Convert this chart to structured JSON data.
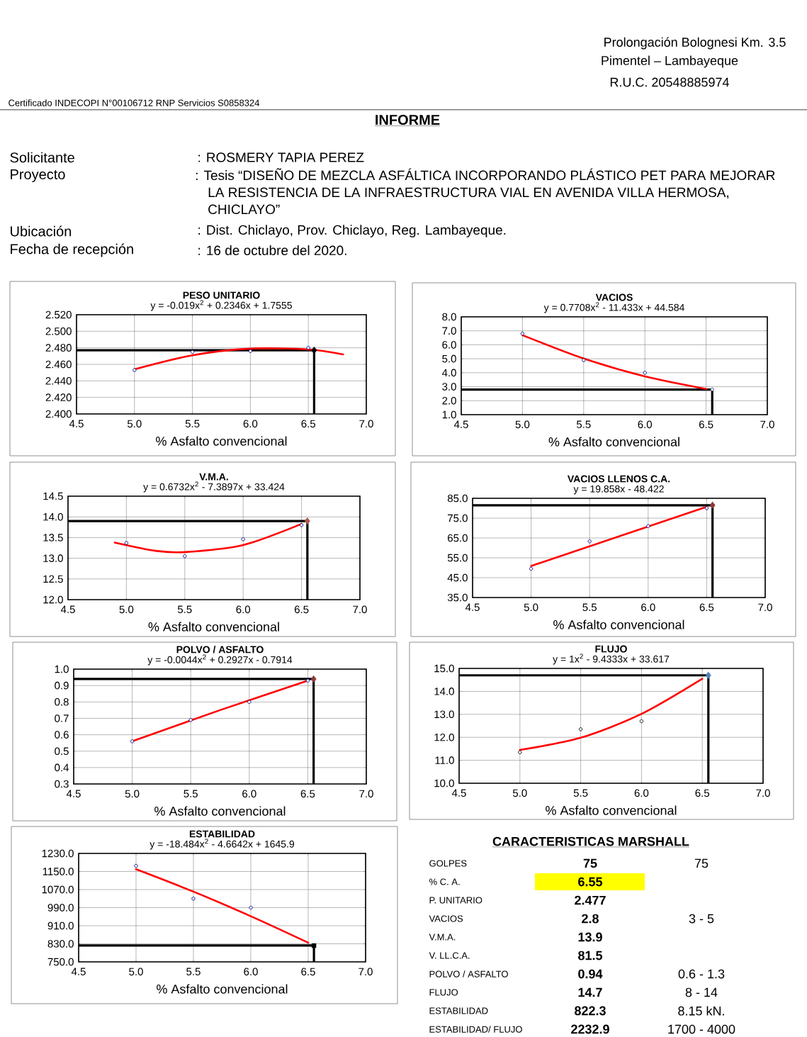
{
  "chart_data": [
    {
      "type": "other",
      "title": "INFORME",
      "annotations": [
        "Prolongación Bolognesi Km. 3.5",
        "Pimentel – Lambayeque",
        "R.U.C. 20548885974",
        "Certificado INDECOPI N°00106712  RNP Servicios S0858324",
        "Solicitante",
        ": ROSMERY TAPIA PEREZ",
        "Proyecto",
        ": Tesis “DISEÑO DE MEZCLA ASFÁLTICA INCORPORANDO PLÁSTICO PET PARA MEJORAR LA RESISTENCIA DE LA INFRAESTRUCTURA VIAL EN AVENIDA VILLA HERMOSA, CHICLAYO”",
        "Ubicación",
        ": Dist. Chiclayo, Prov. Chiclayo, Reg. Lambayeque.",
        "Fecha de recepción",
        ": 16 de octubre del 2020."
      ]
    },
    {
      "type": "scatter",
      "title": "PESO UNITARIO",
      "xlabel": "% Asfalto convencional",
      "annotations": [
        "y = -0.019x$^{2}$ + 0.2346x  + 1.7555"
      ],
      "grid": true,
      "xlim": [
        4.5,
        7.0
      ],
      "xticks": [
        {
          "value": 4.5,
          "label": "4.5"
        },
        {
          "value": 5.0,
          "label": "5.0"
        },
        {
          "value": 5.5,
          "label": "5.5"
        },
        {
          "value": 6.0,
          "label": "6.0"
        },
        {
          "value": 6.5,
          "label": "6.5"
        },
        {
          "value": 7.0,
          "label": "7.0"
        }
      ],
      "ylim": [
        2.4,
        2.52
      ],
      "yticks": [
        {
          "value": 2.4,
          "label": "2.400"
        },
        {
          "value": 2.42,
          "label": "2.420"
        },
        {
          "value": 2.44,
          "label": "2.440"
        },
        {
          "value": 2.46,
          "label": "2.460"
        },
        {
          "value": 2.48,
          "label": "2.480"
        },
        {
          "value": 2.5,
          "label": "2.500"
        },
        {
          "value": 2.52,
          "label": "2.520"
        }
      ],
      "ref_lines": [
        {
          "axis": "x",
          "value": 6.55
        },
        {
          "axis": "y",
          "value": 2.477
        }
      ],
      "series": [
        {
          "type": "scatter",
          "marker": "circle",
          "color": "#000080",
          "x": [
            5.0,
            5.5,
            6.0,
            6.5
          ],
          "values": [
            2.453,
            2.475,
            2.476,
            2.48
          ]
        },
        {
          "type": "line",
          "marker": "none",
          "color": "#ff0000",
          "x": [
            5.0,
            5.5,
            6.0,
            6.5,
            6.8
          ],
          "values": [
            2.454,
            2.471,
            2.479,
            2.478,
            2.472
          ]
        },
        {
          "type": "scatter",
          "marker": "diamond",
          "color": "#000000",
          "x": [
            6.55
          ],
          "values": [
            2.477
          ]
        }
      ]
    },
    {
      "type": "scatter",
      "title": "VACIOS",
      "xlabel": "% Asfalto convencional",
      "annotations": [
        "y = 0.7708x$^{2}$ - 11.433x  + 44.584"
      ],
      "grid": true,
      "xlim": [
        4.5,
        7.0
      ],
      "xticks": [
        {
          "value": 4.5,
          "label": "4.5"
        },
        {
          "value": 5.0,
          "label": "5.0"
        },
        {
          "value": 5.5,
          "label": "5.5"
        },
        {
          "value": 6.0,
          "label": "6.0"
        },
        {
          "value": 6.5,
          "label": "6.5"
        },
        {
          "value": 7.0,
          "label": "7.0"
        }
      ],
      "ylim": [
        1.0,
        8.0
      ],
      "yticks": [
        {
          "value": 1,
          "label": "1.0"
        },
        {
          "value": 2,
          "label": "2.0"
        },
        {
          "value": 3,
          "label": "3.0"
        },
        {
          "value": 4,
          "label": "4.0"
        },
        {
          "value": 5,
          "label": "5.0"
        },
        {
          "value": 6,
          "label": "6.0"
        },
        {
          "value": 7,
          "label": "7.0"
        },
        {
          "value": 8,
          "label": "8.0"
        }
      ],
      "ref_lines": [
        {
          "axis": "x",
          "value": 6.55
        },
        {
          "axis": "y",
          "value": 2.8
        }
      ],
      "series": [
        {
          "type": "scatter",
          "marker": "circle",
          "color": "#000080",
          "x": [
            5.0,
            5.5,
            6.0
          ],
          "values": [
            6.8,
            4.9,
            4.0
          ]
        },
        {
          "type": "line",
          "marker": "none",
          "color": "#ff0000",
          "x": [
            5.0,
            5.5,
            6.0,
            6.5
          ],
          "values": [
            6.69,
            5.02,
            3.74,
            2.84
          ]
        },
        {
          "type": "scatter",
          "marker": "circle",
          "color": "#333355",
          "x": [
            6.55
          ],
          "values": [
            2.8
          ]
        }
      ]
    },
    {
      "type": "scatter",
      "title": "V.M.A.",
      "xlabel": "% Asfalto convencional",
      "annotations": [
        "y = 0.6732x$^{2}$ - 7.3897x  + 33.424"
      ],
      "grid": true,
      "xlim": [
        4.5,
        7.0
      ],
      "xticks": [
        {
          "value": 4.5,
          "label": "4.5"
        },
        {
          "value": 5.0,
          "label": "5.0"
        },
        {
          "value": 5.5,
          "label": "5.5"
        },
        {
          "value": 6.0,
          "label": "6.0"
        },
        {
          "value": 6.5,
          "label": "6.5"
        },
        {
          "value": 7.0,
          "label": "7.0"
        }
      ],
      "ylim": [
        12.0,
        14.5
      ],
      "yticks": [
        {
          "value": 12.0,
          "label": "12.0"
        },
        {
          "value": 12.5,
          "label": "12.5"
        },
        {
          "value": 13.0,
          "label": "13.0"
        },
        {
          "value": 13.5,
          "label": "13.5"
        },
        {
          "value": 14.0,
          "label": "14.0"
        },
        {
          "value": 14.5,
          "label": "14.5"
        }
      ],
      "ref_lines": [
        {
          "axis": "x",
          "value": 6.55
        },
        {
          "axis": "y",
          "value": 13.9
        }
      ],
      "series": [
        {
          "type": "scatter",
          "marker": "circle",
          "color": "#000080",
          "x": [
            5.0,
            5.5,
            6.0,
            6.5
          ],
          "values": [
            13.37,
            13.05,
            13.46,
            13.8
          ]
        },
        {
          "type": "line",
          "marker": "none",
          "color": "#ff0000",
          "x": [
            4.9,
            5.25,
            5.5,
            6.0,
            6.5
          ],
          "values": [
            13.38,
            13.18,
            13.15,
            13.32,
            13.83
          ]
        },
        {
          "type": "scatter",
          "marker": "diamond",
          "color": "#b05a4a",
          "x": [
            6.55
          ],
          "values": [
            13.9
          ]
        }
      ]
    },
    {
      "type": "scatter",
      "title": "VACIOS LLENOS C.A.",
      "xlabel": "% Asfalto convencional",
      "annotations": [
        "y = 19.858x  - 48.422"
      ],
      "grid": true,
      "xlim": [
        4.5,
        7.0
      ],
      "xticks": [
        {
          "value": 4.5,
          "label": "4.5"
        },
        {
          "value": 5.0,
          "label": "5.0"
        },
        {
          "value": 5.5,
          "label": "5.5"
        },
        {
          "value": 6.0,
          "label": "6.0"
        },
        {
          "value": 6.5,
          "label": "6.5"
        },
        {
          "value": 7.0,
          "label": "7.0"
        }
      ],
      "ylim": [
        35.0,
        85.0
      ],
      "yticks": [
        {
          "value": 35,
          "label": "35.0"
        },
        {
          "value": 45,
          "label": "45.0"
        },
        {
          "value": 55,
          "label": "55.0"
        },
        {
          "value": 65,
          "label": "65.0"
        },
        {
          "value": 75,
          "label": "75.0"
        },
        {
          "value": 85,
          "label": "85.0"
        }
      ],
      "ref_lines": [
        {
          "axis": "x",
          "value": 6.55
        },
        {
          "axis": "y",
          "value": 81.5
        }
      ],
      "series": [
        {
          "type": "scatter",
          "marker": "circle",
          "color": "#000080",
          "x": [
            5.0,
            5.5,
            6.0,
            6.5
          ],
          "values": [
            49.5,
            63.3,
            71.0,
            80.0
          ]
        },
        {
          "type": "line",
          "marker": "none",
          "color": "#ff0000",
          "x": [
            5.0,
            6.5
          ],
          "values": [
            50.9,
            80.7
          ]
        },
        {
          "type": "scatter",
          "marker": "diamond",
          "color": "#8b3a3a",
          "x": [
            6.55
          ],
          "values": [
            81.5
          ]
        }
      ]
    },
    {
      "type": "scatter",
      "title": "POLVO / ASFALTO",
      "xlabel": "% Asfalto convencional",
      "annotations": [
        "y = -0.0044x$^{2}$ + 0.2927x  - 0.7914"
      ],
      "grid": true,
      "xlim": [
        4.5,
        7.0
      ],
      "xticks": [
        {
          "value": 4.5,
          "label": "4.5"
        },
        {
          "value": 5.0,
          "label": "5.0"
        },
        {
          "value": 5.5,
          "label": "5.5"
        },
        {
          "value": 6.0,
          "label": "6.0"
        },
        {
          "value": 6.5,
          "label": "6.5"
        },
        {
          "value": 7.0,
          "label": "7.0"
        }
      ],
      "ylim": [
        0.3,
        1.0
      ],
      "yticks": [
        {
          "value": 0.3,
          "label": "0.3"
        },
        {
          "value": 0.4,
          "label": "0.4"
        },
        {
          "value": 0.5,
          "label": "0.5"
        },
        {
          "value": 0.6,
          "label": "0.6"
        },
        {
          "value": 0.7,
          "label": "0.7"
        },
        {
          "value": 0.8,
          "label": "0.8"
        },
        {
          "value": 0.9,
          "label": "0.9"
        },
        {
          "value": 1.0,
          "label": "1.0"
        }
      ],
      "ref_lines": [
        {
          "axis": "x",
          "value": 6.55
        },
        {
          "axis": "y",
          "value": 0.94
        }
      ],
      "series": [
        {
          "type": "scatter",
          "marker": "circle",
          "color": "#000080",
          "x": [
            5.0,
            5.5,
            6.0,
            6.5
          ],
          "values": [
            0.56,
            0.69,
            0.8,
            0.93
          ]
        },
        {
          "type": "line",
          "marker": "none",
          "color": "#ff0000",
          "x": [
            5.0,
            5.75,
            6.5
          ],
          "values": [
            0.56,
            0.75,
            0.93
          ]
        },
        {
          "type": "scatter",
          "marker": "diamond",
          "color": "#8b3a3a",
          "x": [
            6.55
          ],
          "values": [
            0.94
          ]
        }
      ]
    },
    {
      "type": "scatter",
      "title": "FLUJO",
      "xlabel": "% Asfalto convencional",
      "annotations": [
        "y = 1x$^{2}$ - 9.4333x + 33.617"
      ],
      "grid": true,
      "xlim": [
        4.5,
        7.0
      ],
      "xticks": [
        {
          "value": 4.5,
          "label": "4.5"
        },
        {
          "value": 5.0,
          "label": "5.0"
        },
        {
          "value": 5.5,
          "label": "5.5"
        },
        {
          "value": 6.0,
          "label": "6.0"
        },
        {
          "value": 6.5,
          "label": "6.5"
        },
        {
          "value": 7.0,
          "label": "7.0"
        }
      ],
      "ylim": [
        10.0,
        15.0
      ],
      "yticks": [
        {
          "value": 10,
          "label": "10.0"
        },
        {
          "value": 11,
          "label": "11.0"
        },
        {
          "value": 12,
          "label": "12.0"
        },
        {
          "value": 13,
          "label": "13.0"
        },
        {
          "value": 14,
          "label": "14.0"
        },
        {
          "value": 15,
          "label": "15.0"
        }
      ],
      "ref_lines": [
        {
          "axis": "x",
          "value": 6.55
        },
        {
          "axis": "y",
          "value": 14.7
        }
      ],
      "series": [
        {
          "type": "scatter",
          "marker": "circle",
          "color": "#000000",
          "x": [
            5.0,
            5.5,
            6.0
          ],
          "values": [
            11.35,
            12.35,
            12.7
          ]
        },
        {
          "type": "line",
          "marker": "none",
          "color": "#ff0000",
          "x": [
            5.0,
            5.5,
            6.0,
            6.5
          ],
          "values": [
            11.45,
            11.98,
            13.02,
            14.55
          ]
        },
        {
          "type": "scatter",
          "marker": "diamond",
          "color": "#4f81bd",
          "x": [
            6.55
          ],
          "values": [
            14.7
          ]
        }
      ]
    },
    {
      "type": "scatter",
      "title": "ESTABILIDAD",
      "xlabel": "% Asfalto convencional",
      "annotations": [
        "y = -18.484x$^{2}$ - 4.6642x + 1645.9"
      ],
      "grid": true,
      "xlim": [
        4.5,
        7.0
      ],
      "xticks": [
        {
          "value": 4.5,
          "label": "4.5"
        },
        {
          "value": 5.0,
          "label": "5.0"
        },
        {
          "value": 5.5,
          "label": "5.5"
        },
        {
          "value": 6.0,
          "label": "6.0"
        },
        {
          "value": 6.5,
          "label": "6.5"
        },
        {
          "value": 7.0,
          "label": "7.0"
        }
      ],
      "ylim": [
        750.0,
        1230.0
      ],
      "yticks": [
        {
          "value": 750,
          "label": "750.0"
        },
        {
          "value": 830,
          "label": "830.0"
        },
        {
          "value": 910,
          "label": "910.0"
        },
        {
          "value": 990,
          "label": "990.0"
        },
        {
          "value": 1070,
          "label": "1070.0"
        },
        {
          "value": 1150,
          "label": "1150.0"
        },
        {
          "value": 1230,
          "label": "1230.0"
        }
      ],
      "ref_lines": [
        {
          "axis": "x",
          "value": 6.55
        },
        {
          "axis": "y",
          "value": 822.3
        }
      ],
      "series": [
        {
          "type": "scatter",
          "marker": "circle",
          "color": "#000080",
          "x": [
            5.0,
            5.5,
            6.0
          ],
          "values": [
            1175,
            1030,
            990
          ]
        },
        {
          "type": "line",
          "marker": "none",
          "color": "#ff0000",
          "x": [
            5.0,
            5.5,
            6.0,
            6.5
          ],
          "values": [
            1160,
            1061,
            952,
            835
          ]
        },
        {
          "type": "scatter",
          "marker": "square",
          "color": "#000000",
          "x": [
            6.55
          ],
          "values": [
            822
          ]
        }
      ]
    },
    {
      "type": "other",
      "title": "CARACTERISTICAS MARSHALL",
      "categories": [
        "GOLPES",
        "% C. A.",
        "P. UNITARIO",
        "VACIOS",
        "V.M.A.",
        "V. LL.C.A.",
        "POLVO / ASFALTO",
        "FLUJO",
        "ESTABILIDAD",
        "ESTABILIDAD/ FLUJO"
      ],
      "values": [
        75,
        6.55,
        2.477,
        2.8,
        13.9,
        81.5,
        0.94,
        14.7,
        822.3,
        2232.9
      ],
      "data_labels": true,
      "colors": [
        null,
        "#ffff00",
        null,
        null,
        null,
        null,
        null,
        null,
        null,
        null
      ],
      "annotations": [
        "75",
        "3 - 5",
        "0.6 - 1.3",
        "8 - 14",
        "8.15 kN.",
        "1700 - 4000"
      ]
    }
  ]
}
